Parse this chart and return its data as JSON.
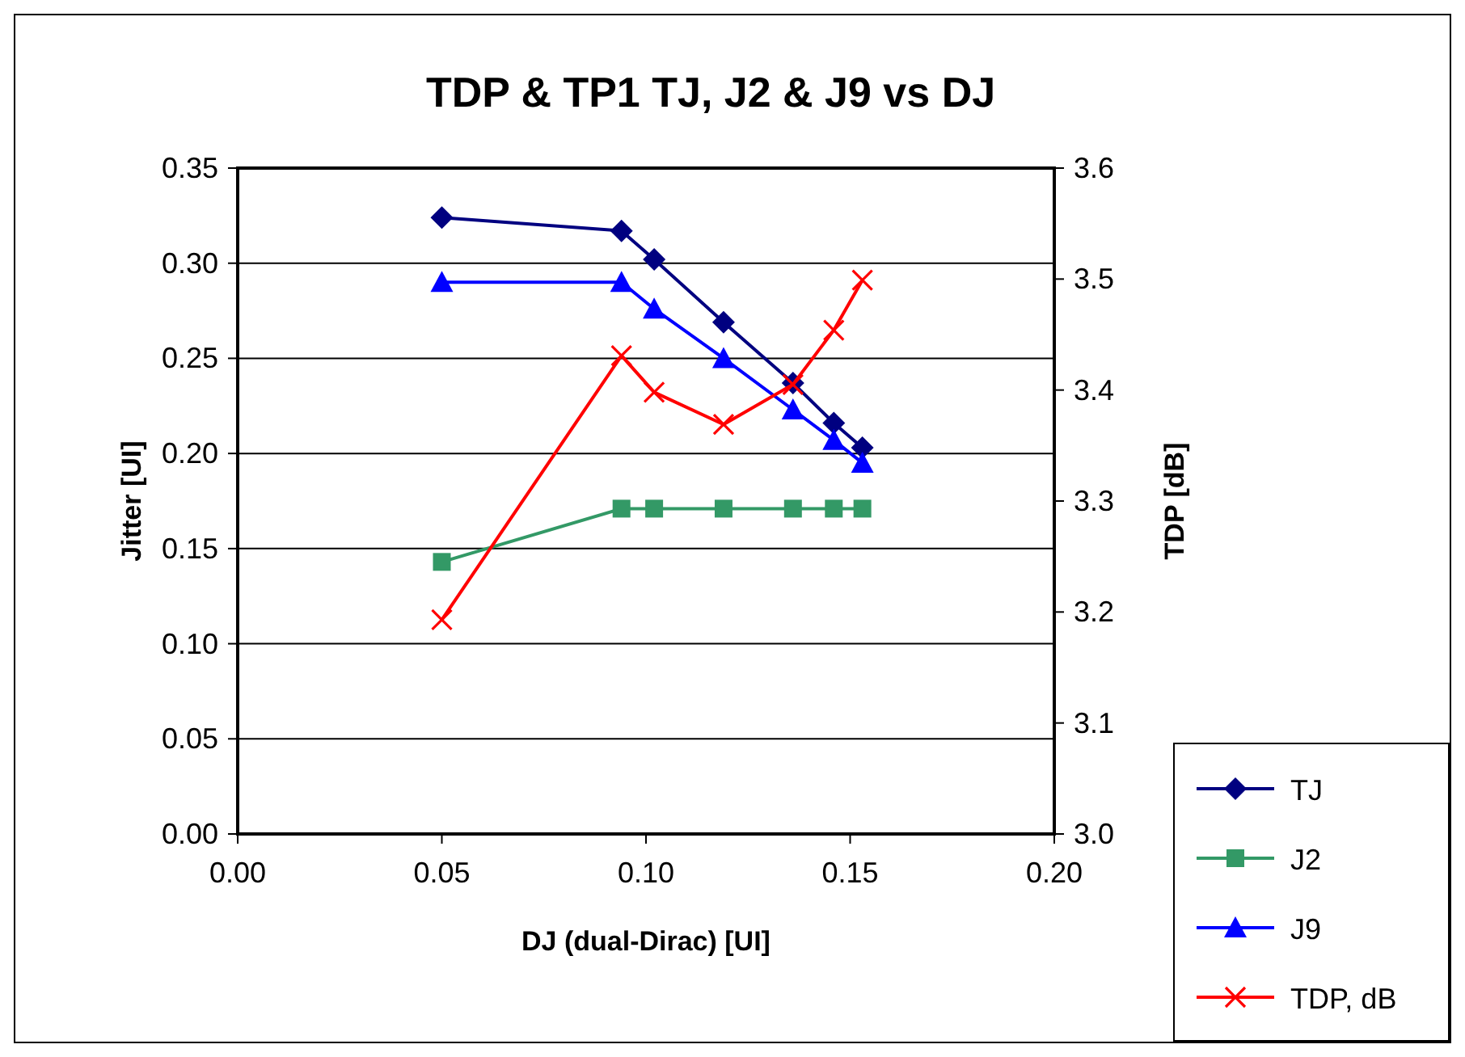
{
  "chart_data": {
    "type": "line",
    "title": "TDP & TP1 TJ, J2 & J9 vs DJ",
    "xlabel": "DJ (dual-Dirac) [UI]",
    "ylabel": "Jitter [UI]",
    "y2label": "TDP [dB]",
    "x": [
      0.05,
      0.094,
      0.102,
      0.119,
      0.136,
      0.146,
      0.153
    ],
    "series": [
      {
        "name": "TJ",
        "color": "#000080",
        "marker": "diamond",
        "values": [
          0.324,
          0.317,
          0.302,
          0.269,
          0.237,
          0.216,
          0.203
        ]
      },
      {
        "name": "J2",
        "color": "#339966",
        "marker": "square",
        "values": [
          0.143,
          0.171,
          0.171,
          0.171,
          0.171,
          0.171,
          0.171
        ]
      },
      {
        "name": "J9",
        "color": "#0000ff",
        "marker": "triangle",
        "values": [
          0.29,
          0.29,
          0.276,
          0.25,
          0.223,
          0.207,
          0.195
        ]
      },
      {
        "name": "TDP, dB",
        "color": "#ff0000",
        "marker": "cross",
        "axis": "y2",
        "values": [
          3.193,
          3.431,
          3.398,
          3.369,
          3.405,
          3.454,
          3.499
        ]
      }
    ],
    "xlim": [
      0,
      0.2
    ],
    "xticks": [
      {
        "value": 0,
        "label": "0.00"
      },
      {
        "value": 0.05,
        "label": "0.05"
      },
      {
        "value": 0.1,
        "label": "0.10"
      },
      {
        "value": 0.15,
        "label": "0.15"
      },
      {
        "value": 0.2,
        "label": "0.20"
      }
    ],
    "ylim": [
      0,
      0.35
    ],
    "yticks": [
      {
        "value": 0,
        "label": "0.00"
      },
      {
        "value": 0.05,
        "label": "0.05"
      },
      {
        "value": 0.1,
        "label": "0.10"
      },
      {
        "value": 0.15,
        "label": "0.15"
      },
      {
        "value": 0.2,
        "label": "0.20"
      },
      {
        "value": 0.25,
        "label": "0.25"
      },
      {
        "value": 0.3,
        "label": "0.30"
      },
      {
        "value": 0.35,
        "label": "0.35"
      }
    ],
    "y2lim": [
      3.0,
      3.6
    ],
    "y2ticks": [
      {
        "value": 3.0,
        "label": "3.0"
      },
      {
        "value": 3.1,
        "label": "3.1"
      },
      {
        "value": 3.2,
        "label": "3.2"
      },
      {
        "value": 3.3,
        "label": "3.3"
      },
      {
        "value": 3.4,
        "label": "3.4"
      },
      {
        "value": 3.5,
        "label": "3.5"
      },
      {
        "value": 3.6,
        "label": "3.6"
      }
    ],
    "grid": "y",
    "legend": "bottom right",
    "line_style": "solid"
  }
}
